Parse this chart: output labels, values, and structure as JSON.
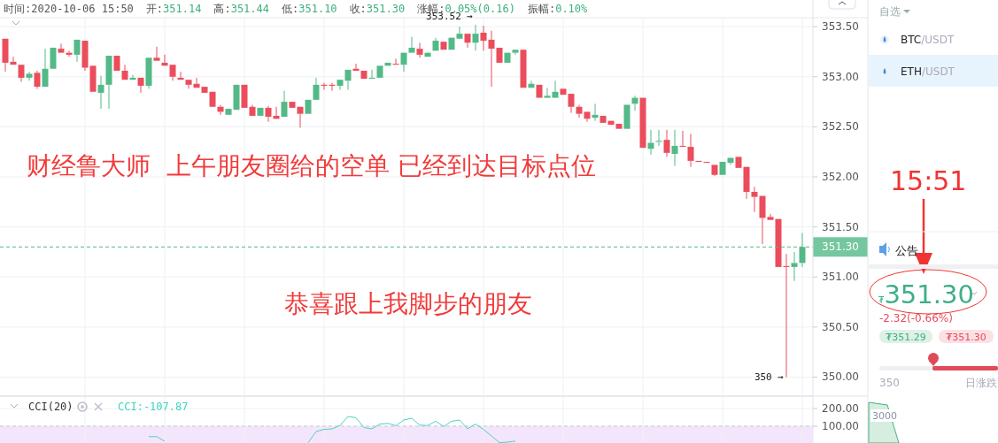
{
  "chart_data": [
    {
      "type": "candlestick",
      "tick_labels": "y",
      "grid": true,
      "colors": [
        "#eb4d5c",
        "#eb4d5c",
        "#eb4d5c",
        "#53b987",
        "#eb4d5c",
        "#53b987",
        "#53b987",
        "#eb4d5c",
        "#eb4d5c",
        "#53b987",
        "#eb4d5c",
        "#eb4d5c",
        "#53b987",
        "#53b987",
        "#eb4d5c",
        "#eb4d5c",
        "#53b987",
        "#eb4d5c",
        "#53b987",
        "#eb4d5c",
        "#eb4d5c",
        "#eb4d5c",
        "#eb4d5c",
        "#eb4d5c",
        "#eb4d5c",
        "#eb4d5c",
        "#eb4d5c",
        "#eb4d5c",
        "#53b987",
        "#53b987",
        "#eb4d5c",
        "#eb4d5c",
        "#53b987",
        "#eb4d5c",
        "#eb4d5c",
        "#53b987",
        "#eb4d5c",
        "#eb4d5c",
        "#53b987",
        "#53b987",
        "#eb4d5c",
        "#eb4d5c",
        "#53b987",
        "#53b987",
        "#eb4d5c",
        "#eb4d5c",
        "#53b987",
        "#53b987",
        "#53b987",
        "#eb4d5c",
        "#53b987",
        "#53b987",
        "#eb4d5c",
        "#53b987",
        "#53b987",
        "#eb4d5c",
        "#53b987",
        "#53b987",
        "#eb4d5c",
        "#53b987",
        "#eb4d5c",
        "#eb4d5c",
        "#eb4d5c",
        "#53b987",
        "#53b987",
        "#eb4d5c",
        "#53b987",
        "#eb4d5c",
        "#53b987",
        "#53b987",
        "#eb4d5c",
        "#eb4d5c",
        "#eb4d5c",
        "#eb4d5c",
        "#53b987",
        "#eb4d5c",
        "#eb4d5c",
        "#eb4d5c",
        "#53b987",
        "#53b987",
        "#eb4d5c",
        "#53b987",
        "#53b987",
        "#eb4d5c",
        "#53b987",
        "#eb4d5c",
        "#eb4d5c",
        "#eb4d5c",
        "#eb4d5c",
        "#eb4d5c",
        "#53b987",
        "#53b987",
        "#eb4d5c",
        "#eb4d5c",
        "#eb4d5c",
        "#eb4d5c",
        "#eb4d5c",
        "#eb4d5c",
        "#eb4d5c",
        "#53b987",
        "#53b987"
      ],
      "ylim": [
        349.81,
        353.59
      ],
      "yticks": [
        {
          "value": 350,
          "label": "350.00"
        },
        {
          "value": 350.5,
          "label": "350.50"
        },
        {
          "value": 351,
          "label": "351.00"
        },
        {
          "value": 351.5,
          "label": "351.50"
        },
        {
          "value": 352,
          "label": "352.00"
        },
        {
          "value": 352.5,
          "label": "352.50"
        },
        {
          "value": 353,
          "label": "353.00"
        },
        {
          "value": 353.5,
          "label": "353.50"
        }
      ],
      "ref_lines": [
        {
          "axis": "y",
          "value": 351.3,
          "label": "351.30",
          "color": "#53b987",
          "line_style": "dashed"
        }
      ],
      "annotations": [
        "时间:2020-10-06 15:50",
        "开:351.14",
        "高:351.44",
        "低:351.10",
        "收:351.30",
        "涨幅:0.05%(0.16)",
        "振幅:0.10%",
        "财经鲁大师  上午朋友圈给的空单 已经到达目标点位",
        "恭喜跟上我脚步的朋友",
        "353.52 →",
        "350 →"
      ],
      "categories": [
        null,
        null,
        null,
        null,
        null,
        null,
        null,
        null,
        null,
        null,
        null,
        null,
        null,
        null,
        null,
        null,
        null,
        null,
        null,
        null,
        null,
        null,
        null,
        null,
        null,
        null,
        null,
        null,
        null,
        null,
        null,
        null,
        null,
        null,
        null,
        null,
        null,
        null,
        null,
        null,
        null,
        null,
        null,
        null,
        null,
        null,
        null,
        null,
        null,
        null,
        null,
        null,
        null,
        null,
        null,
        null,
        null,
        null,
        null,
        null,
        null,
        null,
        null,
        null,
        null,
        null,
        null,
        null,
        null,
        null,
        null,
        null,
        null,
        null,
        null,
        null,
        null,
        null,
        null,
        null,
        null,
        null,
        null,
        null,
        null,
        null,
        null,
        null,
        null,
        null,
        null,
        null,
        null,
        null,
        null,
        null,
        null,
        null,
        null,
        null,
        null
      ],
      "ohlc": [
        [
          353.38,
          353.38,
          353.05,
          353.14
        ],
        [
          353.15,
          353.2,
          353.12,
          353.12
        ],
        [
          353.12,
          353.12,
          352.95,
          352.99
        ],
        [
          352.99,
          353.05,
          352.96,
          353.03
        ],
        [
          353.04,
          353.06,
          352.88,
          352.9
        ],
        [
          352.9,
          353.28,
          352.9,
          353.08
        ],
        [
          353.08,
          353.29,
          353.08,
          353.29
        ],
        [
          353.28,
          353.33,
          353.24,
          353.24
        ],
        [
          353.24,
          353.26,
          353.2,
          353.22
        ],
        [
          353.22,
          353.37,
          353.15,
          353.37
        ],
        [
          353.36,
          353.36,
          353.06,
          353.09
        ],
        [
          353.11,
          353.11,
          352.85,
          352.85
        ],
        [
          352.84,
          353.01,
          352.68,
          352.92
        ],
        [
          352.92,
          353.21,
          352.68,
          353.21
        ],
        [
          353.21,
          353.21,
          353.06,
          353.06
        ],
        [
          353.06,
          353.12,
          352.97,
          352.97
        ],
        [
          352.97,
          353.02,
          352.97,
          352.99
        ],
        [
          352.99,
          352.99,
          352.84,
          352.91
        ],
        [
          352.91,
          353.19,
          352.88,
          353.19
        ],
        [
          353.19,
          353.3,
          353.16,
          353.16
        ],
        [
          353.14,
          353.22,
          353.11,
          353.11
        ],
        [
          353.12,
          353.12,
          352.96,
          353.0
        ],
        [
          352.99,
          353.05,
          352.97,
          352.97
        ],
        [
          352.97,
          352.97,
          352.88,
          352.92
        ],
        [
          352.93,
          352.99,
          352.89,
          352.89
        ],
        [
          352.9,
          352.9,
          352.84,
          352.84
        ],
        [
          352.85,
          352.85,
          352.7,
          352.7
        ],
        [
          352.7,
          352.72,
          352.62,
          352.65
        ],
        [
          352.62,
          352.68,
          352.62,
          352.68
        ],
        [
          352.67,
          352.92,
          352.67,
          352.92
        ],
        [
          352.92,
          352.92,
          352.69,
          352.69
        ],
        [
          352.7,
          352.72,
          352.61,
          352.61
        ],
        [
          352.61,
          352.69,
          352.61,
          352.69
        ],
        [
          352.69,
          352.71,
          352.55,
          352.6
        ],
        [
          352.61,
          352.7,
          352.58,
          352.58
        ],
        [
          352.6,
          352.86,
          352.6,
          352.75
        ],
        [
          352.75,
          352.75,
          352.69,
          352.69
        ],
        [
          352.7,
          352.7,
          352.49,
          352.63
        ],
        [
          352.63,
          352.77,
          352.63,
          352.77
        ],
        [
          352.77,
          352.99,
          352.77,
          352.92
        ],
        [
          352.92,
          352.94,
          352.87,
          352.91
        ],
        [
          352.92,
          352.94,
          352.86,
          352.91
        ],
        [
          352.91,
          352.97,
          352.87,
          352.97
        ],
        [
          352.96,
          353.07,
          352.87,
          353.07
        ],
        [
          353.08,
          353.13,
          353.06,
          353.06
        ],
        [
          353.06,
          353.06,
          352.98,
          352.98
        ],
        [
          352.98,
          353.07,
          352.98,
          352.99
        ],
        [
          352.99,
          353.11,
          352.99,
          353.11
        ],
        [
          353.11,
          353.14,
          353.11,
          353.14
        ],
        [
          353.13,
          353.18,
          353.12,
          353.12
        ],
        [
          353.12,
          353.24,
          353.05,
          353.24
        ],
        [
          353.24,
          353.4,
          353.24,
          353.29
        ],
        [
          353.28,
          353.34,
          353.19,
          353.22
        ],
        [
          353.2,
          353.24,
          353.2,
          353.24
        ],
        [
          353.26,
          353.39,
          353.26,
          353.36
        ],
        [
          353.35,
          353.35,
          353.27,
          353.27
        ],
        [
          353.27,
          353.39,
          353.27,
          353.39
        ],
        [
          353.38,
          353.5,
          353.38,
          353.43
        ],
        [
          353.43,
          353.43,
          353.29,
          353.34
        ],
        [
          353.34,
          353.52,
          353.26,
          353.43
        ],
        [
          353.44,
          353.51,
          353.26,
          353.36
        ],
        [
          353.37,
          353.46,
          352.9,
          353.28
        ],
        [
          353.29,
          353.29,
          353.14,
          353.14
        ],
        [
          353.14,
          353.24,
          353.14,
          353.24
        ],
        [
          353.24,
          353.27,
          353.22,
          353.27
        ],
        [
          353.27,
          353.27,
          352.89,
          352.89
        ],
        [
          352.89,
          352.96,
          352.89,
          352.93
        ],
        [
          352.92,
          352.92,
          352.79,
          352.79
        ],
        [
          352.79,
          352.89,
          352.79,
          352.81
        ],
        [
          352.79,
          352.96,
          352.79,
          352.85
        ],
        [
          352.88,
          352.88,
          352.82,
          352.82
        ],
        [
          352.83,
          352.83,
          352.64,
          352.7
        ],
        [
          352.7,
          352.72,
          352.59,
          352.63
        ],
        [
          352.65,
          352.65,
          352.55,
          352.58
        ],
        [
          352.59,
          352.73,
          352.56,
          352.62
        ],
        [
          352.61,
          352.61,
          352.54,
          352.54
        ],
        [
          352.56,
          352.56,
          352.52,
          352.52
        ],
        [
          352.53,
          352.53,
          352.48,
          352.48
        ],
        [
          352.48,
          352.72,
          352.48,
          352.72
        ],
        [
          352.73,
          352.81,
          352.66,
          352.79
        ],
        [
          352.79,
          352.79,
          352.29,
          352.29
        ],
        [
          352.28,
          352.47,
          352.22,
          352.34
        ],
        [
          352.35,
          352.47,
          352.31,
          352.36
        ],
        [
          352.37,
          352.47,
          352.2,
          352.24
        ],
        [
          352.23,
          352.47,
          352.11,
          352.31
        ],
        [
          352.31,
          352.46,
          352.3,
          352.3
        ],
        [
          352.3,
          352.43,
          352.1,
          352.16
        ],
        [
          352.16,
          352.16,
          352.15,
          352.15
        ],
        [
          352.15,
          352.15,
          352.14,
          352.14
        ],
        [
          352.12,
          352.12,
          352.01,
          352.02
        ],
        [
          352.02,
          352.15,
          352.02,
          352.15
        ],
        [
          352.14,
          352.19,
          352.12,
          352.19
        ],
        [
          352.2,
          352.2,
          352.09,
          352.09
        ],
        [
          352.1,
          352.1,
          351.78,
          351.85
        ],
        [
          351.85,
          351.9,
          351.65,
          351.8
        ],
        [
          351.81,
          351.81,
          351.33,
          351.59
        ],
        [
          351.6,
          351.63,
          351.57,
          351.57
        ],
        [
          351.58,
          351.58,
          351.1,
          351.1
        ],
        [
          351.11,
          351.23,
          350.0,
          351.1
        ],
        [
          351.1,
          351.25,
          350.96,
          351.14
        ],
        [
          351.14,
          351.44,
          351.1,
          351.3
        ]
      ]
    },
    {
      "type": "line",
      "title": "CCI(20)",
      "tick_labels": "y",
      "grid": true,
      "ylim": [
        5,
        265
      ],
      "yticks": [
        {
          "value": 100,
          "label": "100.00"
        },
        {
          "value": 200,
          "label": "200.00"
        }
      ],
      "ref_lines": [
        {
          "axis": "y",
          "value": 100,
          "color": "#c8c8d0",
          "line_style": "dashed"
        }
      ],
      "bands": [
        {
          "axis": "y",
          "from": 5,
          "to": 100,
          "color": "#f3e6fc"
        }
      ],
      "annotations": [
        "CCI:-107.87"
      ],
      "categories": [
        null,
        null,
        null,
        null,
        null,
        null,
        null,
        null,
        null,
        null,
        null,
        null,
        null,
        null,
        null,
        null,
        null,
        null,
        null,
        null,
        null,
        null,
        null,
        null,
        null,
        null,
        null,
        null,
        null,
        null,
        null,
        null,
        null,
        null,
        null,
        null,
        null,
        null,
        null,
        null,
        null,
        null,
        null,
        null,
        null,
        null,
        null,
        null,
        null,
        null,
        null,
        null,
        null,
        null,
        null,
        null,
        null,
        null,
        null,
        null,
        null,
        null,
        null,
        null,
        null,
        null,
        null,
        null,
        null,
        null,
        null,
        null,
        null,
        null,
        null,
        null,
        null,
        null,
        null,
        null,
        null,
        null,
        null,
        null,
        null,
        null,
        null,
        null,
        null,
        null,
        null,
        null,
        null,
        null,
        null,
        null,
        null,
        null,
        null,
        null,
        null
      ],
      "series": [
        {
          "color": "#4fd1c1",
          "values": [
            null,
            null,
            null,
            null,
            null,
            null,
            null,
            null,
            null,
            null,
            null,
            null,
            null,
            null,
            null,
            null,
            null,
            null,
            41,
            41,
            15,
            null,
            null,
            null,
            null,
            null,
            null,
            null,
            null,
            null,
            null,
            null,
            null,
            null,
            null,
            null,
            null,
            null,
            7,
            70,
            82,
            85,
            104,
            155,
            148,
            92,
            85,
            112,
            116,
            103,
            135,
            145,
            106,
            104,
            128,
            98,
            128,
            135,
            85,
            112,
            82,
            45,
            7,
            10,
            16,
            null,
            null,
            null,
            null,
            null,
            null,
            null,
            null,
            null,
            null,
            null,
            null,
            null,
            null,
            null,
            null,
            null,
            null,
            null,
            null,
            null,
            null,
            null,
            null,
            null,
            null,
            null,
            null,
            null,
            null,
            null,
            null,
            null,
            null,
            null,
            null
          ]
        }
      ]
    },
    {
      "type": "other",
      "annotations": [
        "自选",
        "BTC/USDT",
        "ETH/USDT",
        "15:51",
        "公告",
        "₮351.30",
        "-2.32(-0.66%)",
        "₮351.29",
        "₮351.30",
        "350",
        "日涨跌",
        "3000"
      ]
    }
  ]
}
